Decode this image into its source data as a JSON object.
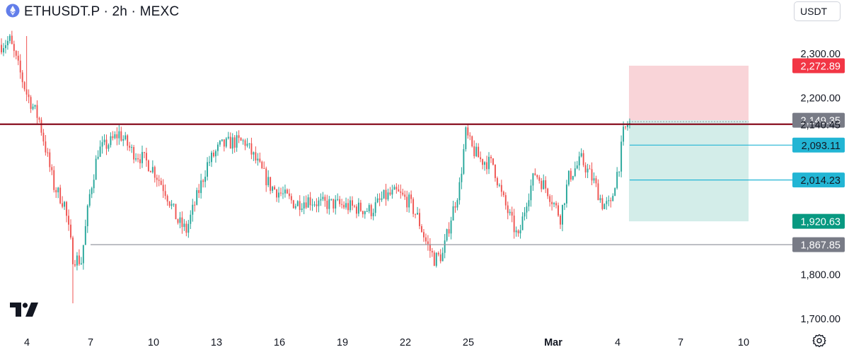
{
  "header": {
    "symbol": "ETHUSDT.P",
    "separator1": " · ",
    "interval": "2h",
    "separator2": " · ",
    "exchange": "MEXC"
  },
  "currency_button": {
    "label": "USDT"
  },
  "icons": {
    "symbol_logo": "eth-coin-icon",
    "brand_logo": "tradingview-logo",
    "settings": "gear-icon"
  },
  "colors": {
    "up": "#26a69a",
    "down": "#ef5350",
    "resistance_line": "#880e1f",
    "support_line": "#9598a1",
    "stop_zone": "#f7c5cb",
    "target_zone": "#c8e9e3",
    "stop_label": "#f23645",
    "entry_label": "#787b86",
    "tp_label": "#22b5d4",
    "final_target_label": "#089981",
    "support_label": "#787b86"
  },
  "chart_data": {
    "type": "candlestick",
    "y_axis": {
      "range": [
        1660,
        2360
      ],
      "ticks": [
        "2,300.00",
        "2,200.00",
        "1,800.00",
        "1,700.00"
      ]
    },
    "x_axis": {
      "ticks": [
        "4",
        "7",
        "10",
        "13",
        "16",
        "19",
        "22",
        "25",
        "Mar",
        "4",
        "7",
        "10"
      ]
    },
    "price_path": [
      [
        0,
        2320
      ],
      [
        4,
        2330
      ],
      [
        8,
        2270
      ],
      [
        12,
        2210
      ],
      [
        18,
        2150
      ],
      [
        25,
        2000
      ],
      [
        30,
        1960
      ],
      [
        34,
        1840
      ],
      [
        38,
        1830
      ],
      [
        42,
        1980
      ],
      [
        46,
        2080
      ],
      [
        52,
        2100
      ],
      [
        56,
        2120
      ],
      [
        62,
        2080
      ],
      [
        68,
        2060
      ],
      [
        72,
        2040
      ],
      [
        78,
        1990
      ],
      [
        84,
        1920
      ],
      [
        88,
        1900
      ],
      [
        92,
        1960
      ],
      [
        98,
        2050
      ],
      [
        104,
        2090
      ],
      [
        110,
        2100
      ],
      [
        116,
        2100
      ],
      [
        122,
        2050
      ],
      [
        128,
        2000
      ],
      [
        134,
        1980
      ],
      [
        140,
        1960
      ],
      [
        146,
        1970
      ],
      [
        152,
        1960
      ],
      [
        158,
        1960
      ],
      [
        164,
        1955
      ],
      [
        170,
        1950
      ],
      [
        176,
        1945
      ],
      [
        182,
        1975
      ],
      [
        188,
        1985
      ],
      [
        194,
        1965
      ],
      [
        198,
        1930
      ],
      [
        202,
        1875
      ],
      [
        206,
        1835
      ],
      [
        210,
        1845
      ],
      [
        214,
        1930
      ],
      [
        218,
        2000
      ],
      [
        221,
        2120
      ],
      [
        224,
        2085
      ],
      [
        228,
        2060
      ],
      [
        234,
        2050
      ],
      [
        238,
        1980
      ],
      [
        242,
        1930
      ],
      [
        246,
        1880
      ],
      [
        250,
        1970
      ],
      [
        254,
        2030
      ],
      [
        260,
        1990
      ],
      [
        266,
        1930
      ],
      [
        270,
        2020
      ],
      [
        276,
        2060
      ],
      [
        282,
        2010
      ],
      [
        286,
        1960
      ],
      [
        290,
        1955
      ],
      [
        292,
        2010
      ],
      [
        294,
        2050
      ],
      [
        296,
        2120
      ],
      [
        298,
        2140
      ]
    ],
    "levels": {
      "resistance": 2140.45,
      "support": 1867.85
    },
    "position": {
      "stop_loss": 2272.89,
      "entry": 2149.35,
      "take_profit_1": 2093.11,
      "take_profit_2": 2014.23,
      "take_profit_3": 1920.63
    },
    "price_labels": [
      {
        "value": 2272.89,
        "text": "2,272.89",
        "style": "stop"
      },
      {
        "value": 2149.35,
        "text": "2,149.35",
        "style": "entry"
      },
      {
        "value": 2140.45,
        "text": "2,140.45",
        "style": "plain"
      },
      {
        "value": 2093.11,
        "text": "2,093.11",
        "style": "tp"
      },
      {
        "value": 2014.23,
        "text": "2,014.23",
        "style": "tp"
      },
      {
        "value": 1920.63,
        "text": "1,920.63",
        "style": "final"
      },
      {
        "value": 1867.85,
        "text": "1,867.85",
        "style": "support"
      }
    ]
  }
}
